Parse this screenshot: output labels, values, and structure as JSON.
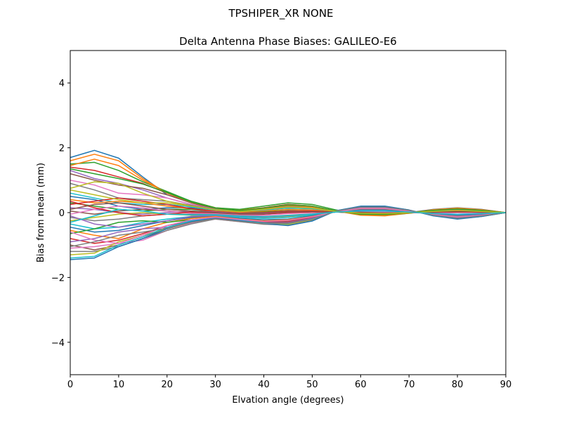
{
  "suptitle": "TPSHIPER_XR     NONE",
  "chart_data": {
    "type": "line",
    "title": "Delta Antenna Phase Biases: GALILEO-E6",
    "xlabel": "Elvation angle (degrees)",
    "ylabel": "Bias from mean (mm)",
    "xlim": [
      0,
      90
    ],
    "ylim": [
      -5,
      5
    ],
    "xticks": [
      0,
      10,
      20,
      30,
      40,
      50,
      60,
      70,
      80,
      90
    ],
    "yticks": [
      -4,
      -2,
      0,
      2,
      4
    ],
    "ytick_labels": [
      "−4",
      "−2",
      "0",
      "2",
      "4"
    ],
    "grid": false,
    "legend": "none",
    "x": [
      0,
      5,
      10,
      15,
      20,
      25,
      30,
      35,
      40,
      45,
      50,
      55,
      60,
      65,
      70,
      75,
      80,
      85,
      90
    ],
    "colors": [
      "#1f77b4",
      "#ff7f0e",
      "#2ca02c",
      "#d62728",
      "#9467bd",
      "#8c564b",
      "#e377c2",
      "#7f7f7f",
      "#bcbd22",
      "#17becf"
    ],
    "series": [
      {
        "values": [
          1.7,
          1.92,
          1.68,
          1.1,
          0.55,
          0.3,
          0.12,
          0.05,
          0.1,
          0.18,
          0.15,
          0.05,
          -0.05,
          -0.05,
          0.0,
          0.1,
          0.15,
          0.1,
          0.0
        ]
      },
      {
        "values": [
          1.6,
          1.8,
          1.6,
          1.05,
          0.6,
          0.35,
          0.15,
          0.08,
          0.15,
          0.25,
          0.2,
          0.05,
          -0.08,
          -0.1,
          -0.02,
          0.08,
          0.12,
          0.08,
          0.0
        ]
      },
      {
        "values": [
          1.5,
          1.55,
          1.3,
          0.95,
          0.65,
          0.35,
          0.15,
          0.1,
          0.2,
          0.3,
          0.25,
          0.08,
          -0.05,
          -0.08,
          -0.02,
          0.05,
          0.1,
          0.06,
          0.0
        ]
      },
      {
        "values": [
          1.4,
          1.3,
          1.1,
          0.9,
          0.6,
          0.3,
          0.1,
          0.05,
          0.15,
          0.25,
          0.2,
          0.05,
          -0.05,
          -0.06,
          0.0,
          0.08,
          0.12,
          0.08,
          0.0
        ]
      },
      {
        "values": [
          1.3,
          1.05,
          0.9,
          0.7,
          0.45,
          0.25,
          0.08,
          0.0,
          0.1,
          0.2,
          0.18,
          0.05,
          -0.05,
          -0.05,
          0.0,
          0.06,
          0.1,
          0.06,
          0.0
        ]
      },
      {
        "values": [
          1.2,
          1.0,
          0.85,
          0.75,
          0.55,
          0.3,
          0.12,
          0.05,
          0.12,
          0.22,
          0.18,
          0.05,
          -0.04,
          -0.05,
          0.0,
          0.06,
          0.1,
          0.06,
          0.0
        ]
      },
      {
        "values": [
          1.0,
          0.85,
          0.6,
          0.55,
          0.45,
          0.25,
          0.1,
          0.05,
          0.1,
          0.18,
          0.15,
          0.05,
          -0.02,
          -0.03,
          0.0,
          0.05,
          0.08,
          0.05,
          0.0
        ]
      },
      {
        "values": [
          0.9,
          0.7,
          0.45,
          0.4,
          0.35,
          0.22,
          0.1,
          0.05,
          0.12,
          0.2,
          0.18,
          0.05,
          -0.02,
          -0.03,
          0.0,
          0.05,
          0.08,
          0.05,
          0.0
        ]
      },
      {
        "values": [
          0.75,
          0.95,
          0.9,
          0.6,
          0.35,
          0.2,
          0.08,
          0.02,
          0.08,
          0.15,
          0.12,
          0.04,
          -0.02,
          -0.03,
          0.0,
          0.04,
          0.06,
          0.04,
          0.0
        ]
      },
      {
        "values": [
          0.6,
          0.45,
          0.3,
          0.25,
          0.25,
          0.18,
          0.08,
          0.02,
          0.08,
          0.14,
          0.12,
          0.04,
          -0.02,
          -0.03,
          0.0,
          0.04,
          0.06,
          0.04,
          0.0
        ]
      },
      {
        "values": [
          0.5,
          0.4,
          0.2,
          0.1,
          0.15,
          0.15,
          0.05,
          0.0,
          0.05,
          0.1,
          0.08,
          0.02,
          -0.02,
          -0.02,
          0.0,
          0.03,
          0.05,
          0.03,
          0.0
        ]
      },
      {
        "values": [
          0.4,
          0.3,
          0.35,
          0.3,
          0.2,
          0.12,
          0.05,
          0.0,
          0.05,
          0.1,
          0.08,
          0.02,
          -0.02,
          -0.02,
          0.0,
          0.03,
          0.05,
          0.03,
          0.0
        ]
      },
      {
        "values": [
          0.3,
          0.2,
          0.1,
          0.05,
          0.1,
          0.1,
          0.03,
          -0.02,
          0.02,
          0.06,
          0.05,
          0.02,
          -0.01,
          -0.02,
          0.0,
          0.02,
          0.04,
          0.02,
          0.0
        ]
      },
      {
        "values": [
          0.25,
          0.35,
          0.45,
          0.35,
          0.25,
          0.12,
          0.03,
          -0.02,
          0.0,
          0.05,
          0.05,
          0.02,
          0.0,
          -0.02,
          0.0,
          0.02,
          0.04,
          0.02,
          0.0
        ]
      },
      {
        "values": [
          0.15,
          0.1,
          0.0,
          -0.05,
          0.0,
          0.05,
          0.02,
          -0.03,
          -0.02,
          0.02,
          0.03,
          0.02,
          0.0,
          -0.01,
          0.0,
          0.02,
          0.03,
          0.02,
          0.0
        ]
      },
      {
        "values": [
          0.05,
          -0.05,
          0.05,
          0.1,
          0.05,
          0.0,
          -0.02,
          -0.05,
          -0.05,
          0.0,
          0.02,
          0.02,
          0.02,
          0.0,
          0.0,
          0.0,
          0.02,
          0.01,
          0.0
        ]
      },
      {
        "values": [
          -0.05,
          0.1,
          0.2,
          0.15,
          0.05,
          -0.02,
          -0.04,
          -0.08,
          -0.08,
          -0.03,
          0.0,
          0.02,
          0.03,
          0.02,
          0.0,
          -0.02,
          0.0,
          0.0,
          0.0
        ]
      },
      {
        "values": [
          -0.15,
          -0.25,
          -0.2,
          -0.1,
          -0.05,
          -0.05,
          -0.06,
          -0.1,
          -0.12,
          -0.08,
          -0.04,
          0.02,
          0.05,
          0.05,
          0.02,
          -0.03,
          -0.05,
          -0.03,
          0.0
        ]
      },
      {
        "values": [
          -0.25,
          -0.15,
          -0.05,
          0.0,
          -0.05,
          -0.08,
          -0.08,
          -0.12,
          -0.15,
          -0.12,
          -0.06,
          0.02,
          0.06,
          0.06,
          0.02,
          -0.03,
          -0.06,
          -0.04,
          0.0
        ]
      },
      {
        "values": [
          -0.35,
          -0.5,
          -0.45,
          -0.3,
          -0.2,
          -0.12,
          -0.1,
          -0.15,
          -0.18,
          -0.15,
          -0.08,
          0.02,
          0.08,
          0.08,
          0.03,
          -0.04,
          -0.08,
          -0.05,
          0.0
        ]
      },
      {
        "values": [
          -0.45,
          -0.6,
          -0.55,
          -0.4,
          -0.25,
          -0.15,
          -0.12,
          -0.18,
          -0.22,
          -0.2,
          -0.1,
          0.03,
          0.1,
          0.1,
          0.04,
          -0.05,
          -0.1,
          -0.06,
          0.0
        ]
      },
      {
        "values": [
          -0.55,
          -0.7,
          -0.8,
          -0.5,
          -0.3,
          -0.18,
          -0.12,
          -0.2,
          -0.25,
          -0.22,
          -0.12,
          0.03,
          0.12,
          0.12,
          0.05,
          -0.06,
          -0.12,
          -0.08,
          0.0
        ]
      },
      {
        "values": [
          -0.65,
          -0.5,
          -0.3,
          -0.25,
          -0.3,
          -0.22,
          -0.15,
          -0.22,
          -0.28,
          -0.25,
          -0.14,
          0.04,
          0.14,
          0.14,
          0.06,
          -0.06,
          -0.14,
          -0.08,
          0.0
        ]
      },
      {
        "values": [
          -0.8,
          -0.95,
          -0.85,
          -0.65,
          -0.4,
          -0.25,
          -0.15,
          -0.22,
          -0.3,
          -0.28,
          -0.16,
          0.04,
          0.15,
          0.15,
          0.06,
          -0.07,
          -0.15,
          -0.09,
          0.0
        ]
      },
      {
        "values": [
          -0.9,
          -0.8,
          -0.6,
          -0.5,
          -0.45,
          -0.3,
          -0.18,
          -0.25,
          -0.32,
          -0.3,
          -0.18,
          0.05,
          0.16,
          0.16,
          0.07,
          -0.08,
          -0.16,
          -0.1,
          0.0
        ]
      },
      {
        "values": [
          -1.0,
          -1.15,
          -1.0,
          -0.75,
          -0.5,
          -0.3,
          -0.18,
          -0.26,
          -0.33,
          -0.32,
          -0.2,
          0.05,
          0.17,
          0.17,
          0.07,
          -0.08,
          -0.17,
          -0.1,
          0.0
        ]
      },
      {
        "values": [
          -1.1,
          -1.05,
          -0.95,
          -0.85,
          -0.55,
          -0.32,
          -0.2,
          -0.28,
          -0.35,
          -0.35,
          -0.22,
          0.06,
          0.18,
          0.18,
          0.08,
          -0.09,
          -0.18,
          -0.11,
          0.0
        ]
      },
      {
        "values": [
          -1.2,
          -1.2,
          -1.05,
          -0.8,
          -0.55,
          -0.35,
          -0.2,
          -0.28,
          -0.36,
          -0.38,
          -0.24,
          0.06,
          0.19,
          0.19,
          0.08,
          -0.09,
          -0.19,
          -0.12,
          0.0
        ]
      },
      {
        "values": [
          -1.3,
          -1.25,
          -0.9,
          -0.7,
          -0.5,
          -0.3,
          -0.18,
          -0.26,
          -0.34,
          -0.36,
          -0.22,
          0.05,
          0.18,
          0.18,
          0.07,
          -0.08,
          -0.18,
          -0.11,
          0.0
        ]
      },
      {
        "values": [
          -1.4,
          -1.35,
          -1.0,
          -0.75,
          -0.45,
          -0.25,
          -0.15,
          -0.24,
          -0.32,
          -0.34,
          -0.2,
          0.05,
          0.17,
          0.17,
          0.07,
          -0.08,
          -0.17,
          -0.1,
          0.0
        ]
      },
      {
        "values": [
          -1.45,
          -1.4,
          -1.05,
          -0.8,
          -0.5,
          -0.28,
          -0.16,
          -0.25,
          -0.34,
          -0.4,
          -0.26,
          0.06,
          0.2,
          0.2,
          0.08,
          -0.1,
          -0.2,
          -0.12,
          0.0
        ]
      },
      {
        "values": [
          1.45,
          1.65,
          1.45,
          1.0,
          0.6,
          0.32,
          0.14,
          0.06,
          0.13,
          0.22,
          0.18,
          0.05,
          -0.06,
          -0.08,
          -0.01,
          0.09,
          0.14,
          0.09,
          0.0
        ]
      },
      {
        "values": [
          1.35,
          1.2,
          1.05,
          0.88,
          0.62,
          0.33,
          0.14,
          0.06,
          0.14,
          0.24,
          0.2,
          0.05,
          -0.05,
          -0.06,
          0.0,
          0.07,
          0.11,
          0.07,
          0.0
        ]
      },
      {
        "values": [
          0.35,
          0.15,
          0.0,
          -0.1,
          -0.05,
          0.02,
          0.0,
          -0.04,
          -0.04,
          0.0,
          0.02,
          0.02,
          0.01,
          -0.01,
          0.0,
          0.01,
          0.02,
          0.01,
          0.0
        ]
      },
      {
        "values": [
          -0.1,
          -0.35,
          -0.45,
          -0.35,
          -0.25,
          -0.12,
          -0.08,
          -0.12,
          -0.14,
          -0.1,
          -0.05,
          0.02,
          0.06,
          0.06,
          0.02,
          -0.03,
          -0.06,
          -0.04,
          0.0
        ]
      },
      {
        "values": [
          0.1,
          0.25,
          0.3,
          0.2,
          0.1,
          0.05,
          0.0,
          -0.04,
          -0.03,
          0.02,
          0.03,
          0.02,
          0.0,
          -0.01,
          0.0,
          0.01,
          0.03,
          0.02,
          0.0
        ]
      },
      {
        "values": [
          -0.6,
          -0.85,
          -0.95,
          -0.7,
          -0.4,
          -0.22,
          -0.14,
          -0.21,
          -0.27,
          -0.24,
          -0.13,
          0.03,
          0.13,
          0.13,
          0.05,
          -0.06,
          -0.13,
          -0.08,
          0.0
        ]
      },
      {
        "values": [
          -1.05,
          -0.9,
          -0.7,
          -0.6,
          -0.48,
          -0.3,
          -0.19,
          -0.27,
          -0.34,
          -0.33,
          -0.21,
          0.05,
          0.17,
          0.17,
          0.07,
          -0.08,
          -0.17,
          -0.1,
          0.0
        ]
      },
      {
        "values": [
          0.7,
          0.55,
          0.4,
          0.3,
          0.3,
          0.2,
          0.09,
          0.03,
          0.1,
          0.17,
          0.14,
          0.04,
          -0.02,
          -0.03,
          0.0,
          0.04,
          0.07,
          0.04,
          0.0
        ]
      },
      {
        "values": [
          -0.3,
          -0.1,
          0.1,
          0.05,
          -0.05,
          -0.07,
          -0.07,
          -0.11,
          -0.13,
          -0.09,
          -0.05,
          0.02,
          0.05,
          0.05,
          0.02,
          -0.03,
          -0.05,
          -0.03,
          0.0
        ]
      }
    ]
  }
}
